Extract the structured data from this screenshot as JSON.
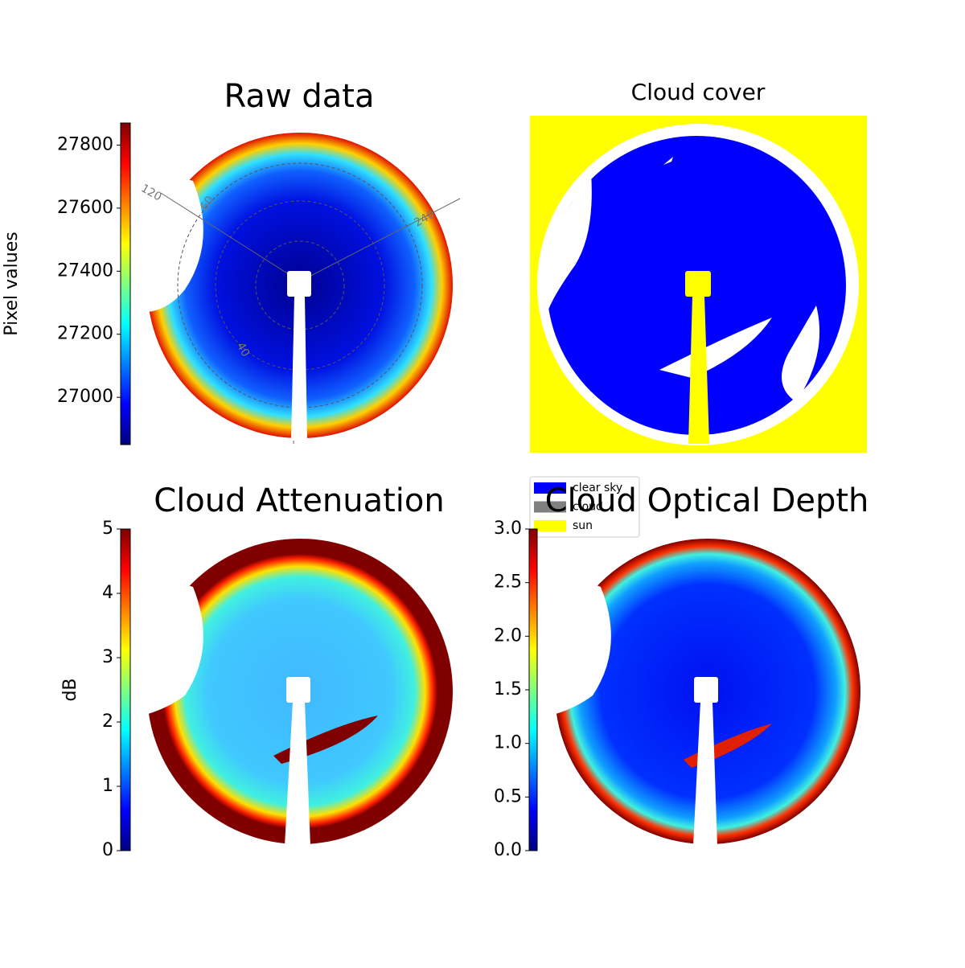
{
  "chart_data": [
    {
      "type": "image",
      "title": "Raw data",
      "colormap": "jet",
      "colorbar": {
        "label": "Pixel values",
        "lim": [
          26850,
          27870
        ],
        "ticks": [
          27000,
          27200,
          27400,
          27600,
          27800
        ]
      },
      "polar_labels": [
        "120",
        "60",
        "240",
        "40"
      ]
    },
    {
      "type": "categorical_image",
      "title": "Cloud cover",
      "series": [
        {
          "name": "clear sky",
          "color": "#0000ff"
        },
        {
          "name": "cloud",
          "color": "#808080"
        },
        {
          "name": "sun",
          "color": "#ffff00"
        }
      ]
    },
    {
      "type": "image",
      "title": "Cloud Attenuation",
      "colormap": "jet",
      "colorbar": {
        "label": "dB",
        "lim": [
          0,
          5
        ],
        "ticks": [
          0,
          1,
          2,
          3,
          4,
          5
        ]
      }
    },
    {
      "type": "image",
      "title": "Cloud Optical Depth",
      "colormap": "jet",
      "colorbar": {
        "lim": [
          0,
          3
        ],
        "ticks": [
          {
            "value": 0,
            "label": "0.0"
          },
          0.5,
          {
            "value": 1,
            "label": "1.0"
          },
          1.5,
          {
            "value": 2,
            "label": "2.0"
          },
          2.5,
          {
            "value": 3,
            "label": "3.0"
          }
        ]
      }
    }
  ]
}
